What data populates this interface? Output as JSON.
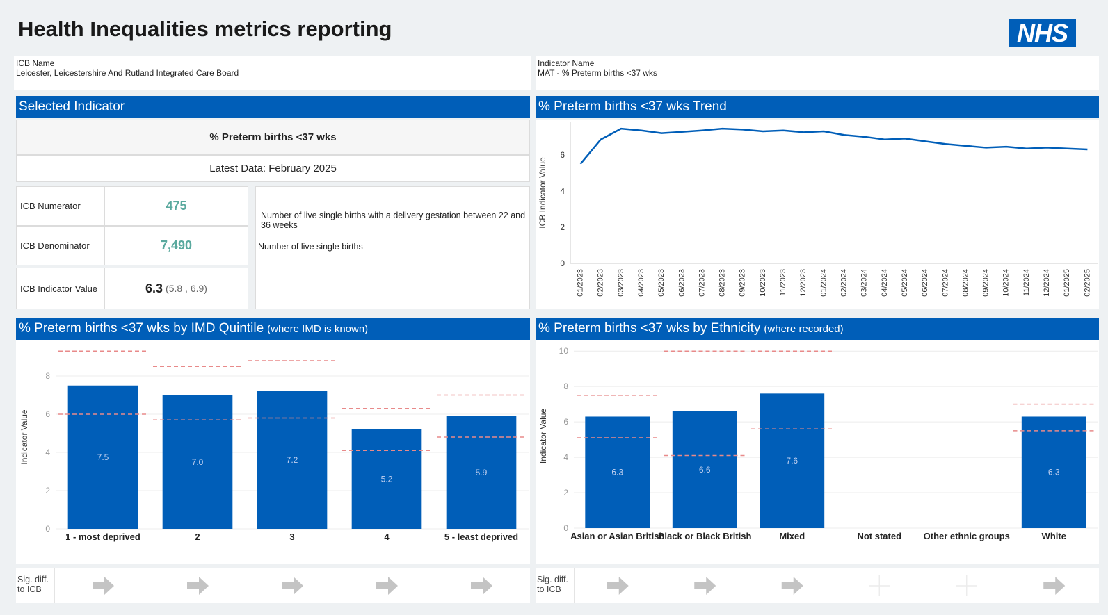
{
  "header": {
    "title": "Health Inequalities metrics reporting",
    "logo": "NHS"
  },
  "info": {
    "icb_label": "ICB Name",
    "icb_value": "Leicester, Leicestershire And Rutland Integrated Care Board",
    "indicator_label": "Indicator Name",
    "indicator_value": "MAT - % Preterm births <37 wks"
  },
  "selected": {
    "heading": "Selected Indicator",
    "name": "% Preterm births <37 wks",
    "latest": "Latest Data: February 2025",
    "rows": [
      {
        "label": "ICB Numerator",
        "value": "475"
      },
      {
        "label": "ICB Denominator",
        "value": "7,490"
      },
      {
        "label": "ICB Indicator Value",
        "value": "6.3",
        "interval": "(5.8 , 6.9)"
      }
    ],
    "descriptions": [
      "Number of live single births with a delivery gestation between 22 and 36 weeks",
      "Number of live single births"
    ]
  },
  "sig_diff_label": "Sig. diff. to ICB",
  "chart_data": [
    {
      "type": "line",
      "title": "% Preterm births <37 wks Trend",
      "y_label": "ICB Indicator Value",
      "categories": [
        "01/2023",
        "02/2023",
        "03/2023",
        "04/2023",
        "05/2023",
        "06/2023",
        "07/2023",
        "08/2023",
        "09/2023",
        "10/2023",
        "11/2023",
        "12/2023",
        "01/2024",
        "02/2024",
        "03/2024",
        "04/2024",
        "05/2024",
        "06/2024",
        "07/2024",
        "08/2024",
        "09/2024",
        "10/2024",
        "11/2024",
        "12/2024",
        "01/2025",
        "02/2025"
      ],
      "values": [
        5.5,
        6.85,
        7.45,
        7.35,
        7.2,
        7.27,
        7.35,
        7.45,
        7.4,
        7.3,
        7.35,
        7.25,
        7.3,
        7.1,
        7.0,
        6.85,
        6.9,
        6.75,
        6.6,
        6.5,
        6.4,
        6.45,
        6.35,
        6.4,
        6.35,
        6.3
      ],
      "color": "#005eb8",
      "ylim": [
        0,
        7.8
      ],
      "yticks": [
        0,
        2,
        4,
        6
      ],
      "grid": false
    },
    {
      "type": "bar",
      "title": "% Preterm births <37 wks by IMD Quintile",
      "subtitle": "(where IMD is known)",
      "y_label": "Indicator Value",
      "categories": [
        "1 - most deprived",
        "2",
        "3",
        "4",
        "5 - least deprived"
      ],
      "values": [
        7.5,
        7.0,
        7.2,
        5.2,
        5.9
      ],
      "value_labels": [
        "7.5",
        "7.0",
        "7.2",
        "5.2",
        "5.9"
      ],
      "ci_lower": [
        6.0,
        5.7,
        5.8,
        4.1,
        4.8
      ],
      "ci_upper": [
        9.3,
        8.5,
        8.8,
        6.3,
        7.0
      ],
      "color": "#005eb8",
      "ci_color": "#e88a8a",
      "ylim": [
        0,
        9.6
      ],
      "yticks": [
        0,
        2,
        4,
        6,
        8
      ],
      "grid": true
    },
    {
      "type": "bar",
      "title": "% Preterm births <37 wks by Ethnicity",
      "subtitle": "(where recorded)",
      "y_label": "Indicator Value",
      "categories": [
        "Asian or Asian British",
        "Black or Black British",
        "Mixed",
        "Not stated",
        "Other ethnic groups",
        "White"
      ],
      "values": [
        6.3,
        6.6,
        7.6,
        null,
        null,
        6.3
      ],
      "value_labels": [
        "6.3",
        "6.6",
        "7.6",
        null,
        null,
        "6.3"
      ],
      "ci_lower": [
        5.1,
        4.1,
        5.6,
        null,
        null,
        5.5
      ],
      "ci_upper": [
        7.5,
        10.0,
        10.0,
        null,
        null,
        7.0
      ],
      "color": "#005eb8",
      "ci_color": "#e88a8a",
      "ylim": [
        0,
        10.4
      ],
      "yticks": [
        0,
        2,
        4,
        6,
        8,
        10
      ],
      "grid": true
    }
  ]
}
